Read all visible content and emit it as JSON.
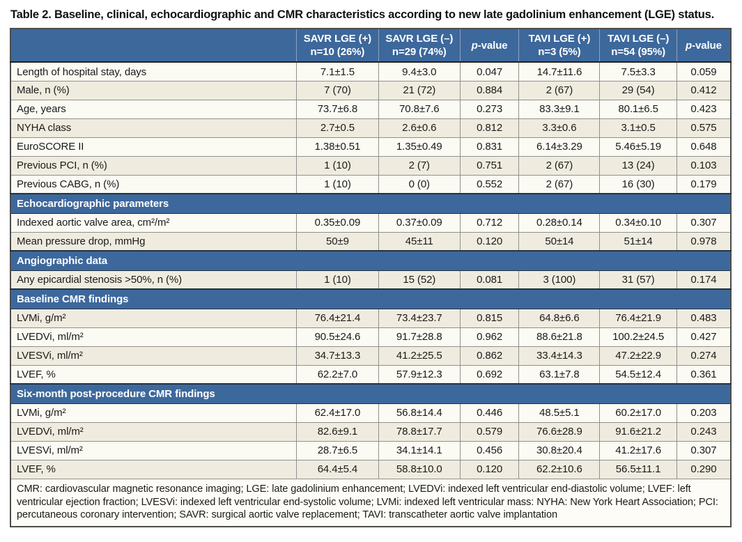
{
  "title": "Table 2. Baseline, clinical, echocardiographic and CMR characteristics according to new late gadolinium enhancement (LGE) status.",
  "colors": {
    "header_bg": "#3d689c",
    "section_bg": "#3d689c",
    "row_cream": "#efecdf",
    "row_white": "#fbfaf3",
    "grid_line": "#8f8f8f",
    "header_text": "#ffffff",
    "body_text": "#1a1a1a"
  },
  "columns": [
    {
      "type": "blank",
      "line1": "",
      "line2": ""
    },
    {
      "type": "two-line",
      "line1": "SAVR LGE (+)",
      "line2": "n=10 (26%)"
    },
    {
      "type": "two-line",
      "line1": "SAVR LGE (–)",
      "line2": "n=29 (74%)"
    },
    {
      "type": "pvalue",
      "italic": "p",
      "rest": "-value"
    },
    {
      "type": "two-line",
      "line1": "TAVI LGE (+)",
      "line2": "n=3 (5%)"
    },
    {
      "type": "two-line",
      "line1": "TAVI LGE (–)",
      "line2": "n=54 (95%)"
    },
    {
      "type": "pvalue",
      "italic": "p",
      "rest": "-value"
    }
  ],
  "col_widths": [
    "39.7%",
    "11.4%",
    "11.3%",
    "8.2%",
    "11.2%",
    "10.7%",
    "7.5%"
  ],
  "rows": [
    {
      "type": "data",
      "shade": "white",
      "label": "Length of hospital stay, days",
      "values": [
        "7.1±1.5",
        "9.4±3.0",
        "0.047",
        "14.7±11.6",
        "7.5±3.3",
        "0.059"
      ]
    },
    {
      "type": "data",
      "shade": "cream",
      "label": "Male, n (%)",
      "values": [
        "7 (70)",
        "21 (72)",
        "0.884",
        "2 (67)",
        "29 (54)",
        "0.412"
      ]
    },
    {
      "type": "data",
      "shade": "white",
      "label": "Age, years",
      "values": [
        "73.7±6.8",
        "70.8±7.6",
        "0.273",
        "83.3±9.1",
        "80.1±6.5",
        "0.423"
      ]
    },
    {
      "type": "data",
      "shade": "cream",
      "label": "NYHA class",
      "values": [
        "2.7±0.5",
        "2.6±0.6",
        "0.812",
        "3.3±0.6",
        "3.1±0.5",
        "0.575"
      ]
    },
    {
      "type": "data",
      "shade": "white",
      "label": "EuroSCORE II",
      "values": [
        "1.38±0.51",
        "1.35±0.49",
        "0.831",
        "6.14±3.29",
        "5.46±5.19",
        "0.648"
      ]
    },
    {
      "type": "data",
      "shade": "cream",
      "label": "Previous PCI, n (%)",
      "values": [
        "1 (10)",
        "2 (7)",
        "0.751",
        "2 (67)",
        "13 (24)",
        "0.103"
      ]
    },
    {
      "type": "data",
      "shade": "white",
      "label": "Previous CABG, n (%)",
      "values": [
        "1 (10)",
        "0 (0)",
        "0.552",
        "2 (67)",
        "16 (30)",
        "0.179"
      ]
    },
    {
      "type": "section",
      "label": "Echocardiographic parameters"
    },
    {
      "type": "data",
      "shade": "white",
      "label": "Indexed aortic valve area, cm²/m²",
      "values": [
        "0.35±0.09",
        "0.37±0.09",
        "0.712",
        "0.28±0.14",
        "0.34±0.10",
        "0.307"
      ]
    },
    {
      "type": "data",
      "shade": "cream",
      "label": "Mean pressure drop, mmHg",
      "values": [
        "50±9",
        "45±11",
        "0.120",
        "50±14",
        "51±14",
        "0.978"
      ]
    },
    {
      "type": "section",
      "label": "Angiographic data"
    },
    {
      "type": "data",
      "shade": "cream",
      "label": "Any epicardial stenosis >50%, n (%)",
      "values": [
        "1 (10)",
        "15 (52)",
        "0.081",
        "3 (100)",
        "31 (57)",
        "0.174"
      ]
    },
    {
      "type": "section",
      "label": "Baseline CMR findings"
    },
    {
      "type": "data",
      "shade": "cream",
      "label": "LVMi, g/m²",
      "values": [
        "76.4±21.4",
        "73.4±23.7",
        "0.815",
        "64.8±6.6",
        "76.4±21.9",
        "0.483"
      ]
    },
    {
      "type": "data",
      "shade": "white",
      "label": "LVEDVi, ml/m²",
      "values": [
        "90.5±24.6",
        "91.7±28.8",
        "0.962",
        "88.6±21.8",
        "100.2±24.5",
        "0.427"
      ]
    },
    {
      "type": "data",
      "shade": "cream",
      "label": "LVESVi, ml/m²",
      "values": [
        "34.7±13.3",
        "41.2±25.5",
        "0.862",
        "33.4±14.3",
        "47.2±22.9",
        "0.274"
      ]
    },
    {
      "type": "data",
      "shade": "white",
      "label": "LVEF, %",
      "values": [
        "62.2±7.0",
        "57.9±12.3",
        "0.692",
        "63.1±7.8",
        "54.5±12.4",
        "0.361"
      ]
    },
    {
      "type": "section",
      "label": "Six-month post-procedure CMR findings"
    },
    {
      "type": "data",
      "shade": "white",
      "label": "LVMi, g/m²",
      "values": [
        "62.4±17.0",
        "56.8±14.4",
        "0.446",
        "48.5±5.1",
        "60.2±17.0",
        "0.203"
      ]
    },
    {
      "type": "data",
      "shade": "cream",
      "label": "LVEDVi, ml/m²",
      "values": [
        "82.6±9.1",
        "78.8±17.7",
        "0.579",
        "76.6±28.9",
        "91.6±21.2",
        "0.243"
      ]
    },
    {
      "type": "data",
      "shade": "white",
      "label": "LVESVi, ml/m²",
      "values": [
        "28.7±6.5",
        "34.1±14.1",
        "0.456",
        "30.8±20.4",
        "41.2±17.6",
        "0.307"
      ]
    },
    {
      "type": "data",
      "shade": "cream",
      "label": "LVEF, %",
      "values": [
        "64.4±5.4",
        "58.8±10.0",
        "0.120",
        "62.2±10.6",
        "56.5±11.1",
        "0.290"
      ]
    }
  ],
  "footnote": "CMR: cardiovascular magnetic resonance imaging; LGE: late gadolinium enhancement; LVEDVi: indexed left ventricular end-diastolic volume; LVEF: left ventricular ejection fraction; LVESVi: indexed left ventricular end-systolic volume; LVMi: indexed left ventricular mass: NYHA: New York Heart Association; PCI: percutaneous coronary intervention; SAVR: surgical aortic valve replacement; TAVI: transcatheter aortic valve implantation"
}
